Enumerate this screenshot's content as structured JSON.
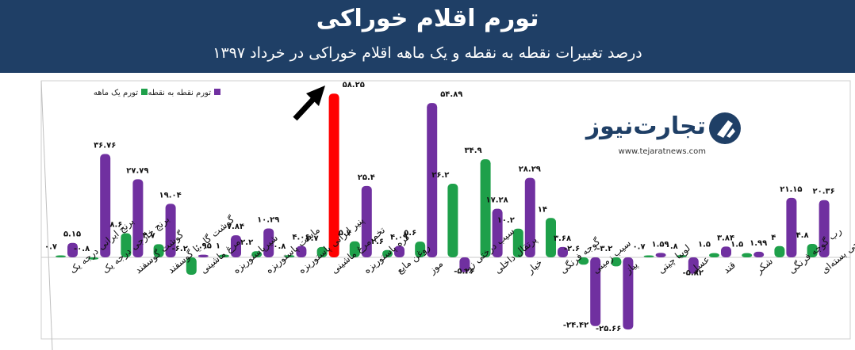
{
  "header": {
    "title": "تورم اقلام خوراکی",
    "subtitle": "درصد تغییرات نقطه به نقطه و یک ماهه اقلام خوراکی در خرداد ۱۳۹۷"
  },
  "logo": {
    "name": "تجارت‌نیوز",
    "url": "www.tejaratnews.com"
  },
  "colors": {
    "monthly": "#1ea04a",
    "point": "#7030a0",
    "highlight": "#ff0000",
    "header_bg": "#1f3f66"
  },
  "chart_data": {
    "type": "bar",
    "legend_position": "top-left",
    "grid": false,
    "categories": [
      "برنج ایرانی درجه یک",
      "برنج خارجی درجه یک",
      "گوشت گوسفند",
      "گوشت گاو یا گوسفند",
      "مرغ ماشینی",
      "شیرپاستوریزه",
      "ماست پاستوریزه",
      "پنیر ایرانی پاستوریزه",
      "تخم مرغ ماشینی",
      "کره پاستوریزه",
      "روغن مایع",
      "موز",
      "سیب درختی زرد",
      "پرتقال داخلی",
      "خیار",
      "گوجه فرنگی",
      "سیب زمینی",
      "پیاز",
      "لوبیا چیتی",
      "عسل",
      "قند",
      "شکر",
      "رب گوجه فرنگی",
      "چای خارجی بسته‌ای"
    ],
    "series": [
      {
        "name": "تورم یک ماهه",
        "values": [
          0.7,
          -0.8,
          8.6,
          4.7,
          -6.2,
          1,
          2.2,
          0.8,
          3.7,
          5.7,
          2.6,
          5.6,
          26.2,
          34.9,
          10.2,
          14,
          -2.6,
          -3.2,
          0.7,
          0.8,
          1.5,
          1.5,
          4,
          4.8
        ],
        "labels": [
          "۰.۷",
          "-۰.۸",
          "۸.۶",
          "۴.۷",
          "-۶.۲",
          "۱",
          "۲.۲",
          "۰.۸",
          "۳.۷",
          "۵.۷",
          "۲.۶",
          "۵.۶",
          "۲۶.۲",
          "۳۴.۹",
          "۱۰.۲",
          "۱۴",
          "-۲.۶",
          "-۳.۲",
          "۰.۷",
          "۰.۸",
          "۱.۵",
          "۱.۵",
          "۴",
          "۴.۸"
        ]
      },
      {
        "name": "تورم نقطه به نقطه",
        "values": [
          5.15,
          36.76,
          27.79,
          19.04,
          0.95,
          7.84,
          10.29,
          4.06,
          58.25,
          25.4,
          4.09,
          54.89,
          -5.26,
          17.28,
          28.29,
          3.68,
          -24.42,
          -25.66,
          1.59,
          -5.82,
          3.84,
          1.99,
          21.15,
          20.36
        ],
        "labels": [
          "۵.۱۵",
          "۳۶.۷۶",
          "۲۷.۷۹",
          "۱۹.۰۴",
          "۰.۹۵",
          "۷.۸۴",
          "۱۰.۲۹",
          "۴.۰۶",
          "۵۸.۲۵",
          "۲۵.۴",
          "۴.۰۹",
          "۵۴.۸۹",
          "-۵.۲۶",
          "۱۷.۲۸",
          "۲۸.۲۹",
          "۳.۶۸",
          "-۲۴.۴۲",
          "-۲۵.۶۶",
          "۱.۵۹",
          "-۵.۸۲",
          "۳.۸۴",
          "۱.۹۹",
          "۲۱.۱۵",
          "۲۰.۳۶"
        ]
      }
    ],
    "highlight_index": 8,
    "ylim": [
      -27,
      59
    ]
  }
}
